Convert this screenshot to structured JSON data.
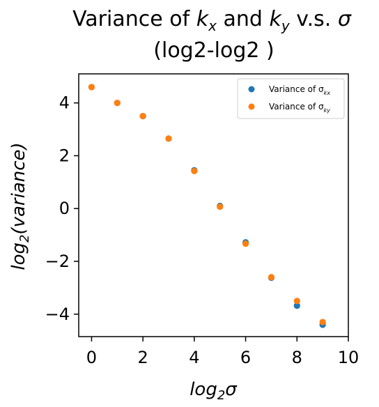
{
  "chart_data": {
    "type": "scatter",
    "title_line1_prefix": "Variance of ",
    "title_kx_base": "k",
    "title_kx_sub": "x",
    "title_and": " and ",
    "title_ky_base": "k",
    "title_ky_sub": "y",
    "title_vs": " v.s. ",
    "title_sigma": "σ",
    "title_line2": "(log2-log2 )",
    "xlabel_base": "log",
    "xlabel_sub": "2",
    "xlabel_suffix": "σ",
    "ylabel_base": "log",
    "ylabel_sub": "2",
    "ylabel_suffix": "(variance)",
    "xlim": [
      -0.5,
      10
    ],
    "ylim": [
      -4.85,
      5.1
    ],
    "xticks": [
      0,
      2,
      4,
      6,
      8,
      10
    ],
    "yticks": [
      -4,
      -2,
      0,
      2,
      4
    ],
    "ytick_labels": [
      "−4",
      "−2",
      "0",
      "2",
      "4"
    ],
    "grid": false,
    "legend_position": "top-right",
    "series": [
      {
        "legend_prefix": "Variance of σ",
        "legend_sub": "kx",
        "color": "#1f77b4",
        "x": [
          0,
          1,
          2,
          3,
          4,
          5,
          6,
          7,
          8,
          9
        ],
        "y": [
          4.6,
          4.0,
          3.5,
          2.65,
          1.45,
          0.1,
          -1.28,
          -2.62,
          -3.68,
          -4.4
        ]
      },
      {
        "legend_prefix": "Variance of σ",
        "legend_sub": "ky",
        "color": "#ff7f0e",
        "x": [
          0,
          1,
          2,
          3,
          4,
          5,
          6,
          7,
          8,
          9
        ],
        "y": [
          4.6,
          4.0,
          3.5,
          2.65,
          1.42,
          0.07,
          -1.33,
          -2.6,
          -3.5,
          -4.3
        ]
      }
    ]
  }
}
